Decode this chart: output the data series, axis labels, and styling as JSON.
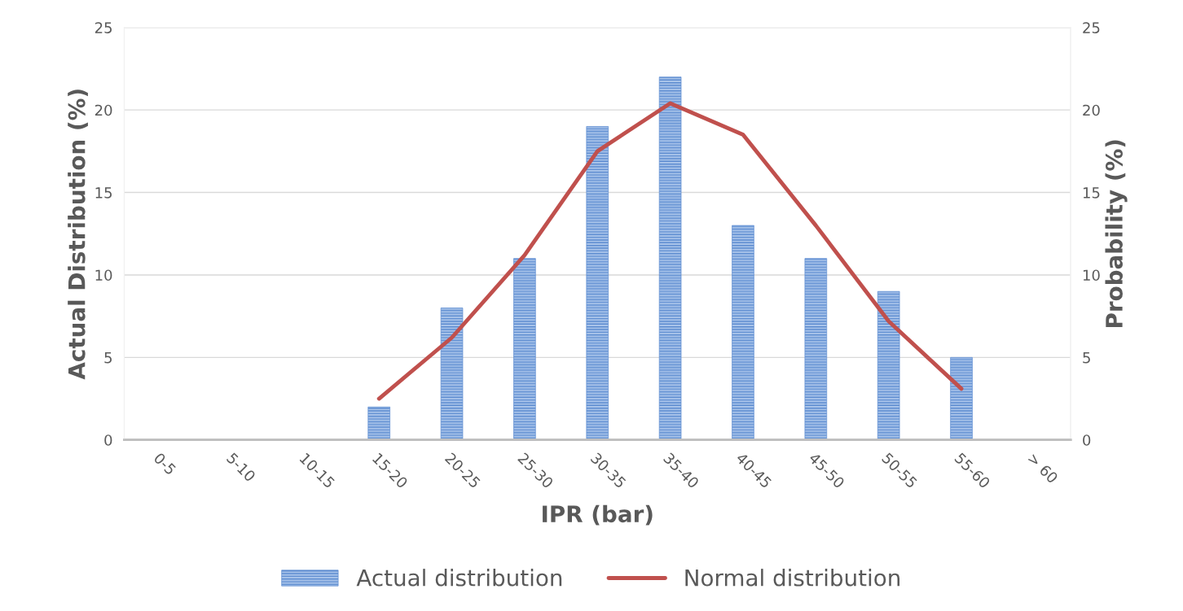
{
  "chart_data": {
    "type": "bar",
    "xlabel": "IPR (bar)",
    "ylabel": "Actual Distribution (%)",
    "y2label": "Probability (%)",
    "categories": [
      "0-5",
      "5-10",
      "10-15",
      "15-20",
      "20-25",
      "25-30",
      "30-35",
      "35-40",
      "40-45",
      "45-50",
      "50-55",
      "55-60",
      "> 60"
    ],
    "series": [
      {
        "name": "Actual distribution",
        "color": "#5b8bd0",
        "values": [
          0,
          0,
          0,
          2,
          8,
          11,
          19,
          22,
          13,
          11,
          9,
          5,
          0
        ]
      },
      {
        "name": "Normal distribution",
        "type": "line",
        "axis": "y2",
        "color": "#c0504d",
        "values": [
          null,
          null,
          null,
          2.5,
          6.2,
          11.2,
          17.5,
          20.4,
          18.5,
          13.0,
          7.2,
          3.1,
          null
        ]
      }
    ],
    "ylim": [
      0,
      25
    ],
    "yticks": [
      0,
      5,
      10,
      15,
      20,
      25
    ],
    "y2lim": [
      0,
      25
    ],
    "y2ticks": [
      0,
      5,
      10,
      15,
      20,
      25
    ],
    "grid": "y",
    "legend": "bottom"
  }
}
